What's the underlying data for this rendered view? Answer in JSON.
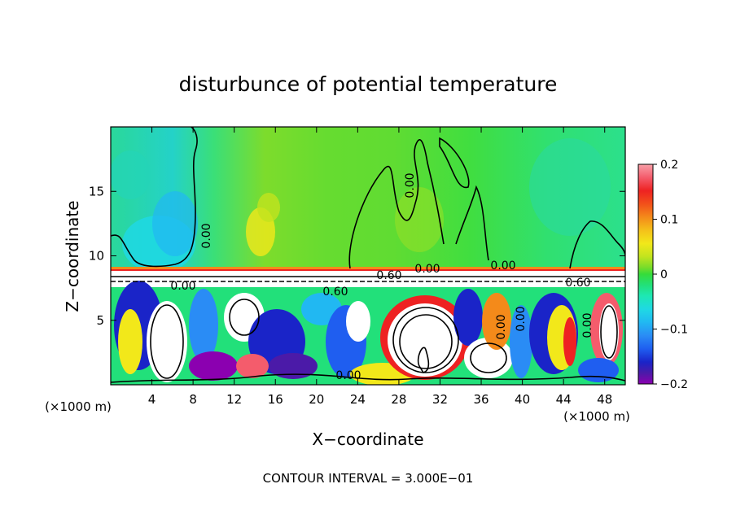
{
  "chart_data": {
    "type": "heatmap",
    "title": "disturbunce of potential temperature",
    "xlabel": "X−coordinate",
    "ylabel": "Z−coordinate",
    "x_unit_left": "(×1000 m)",
    "x_unit_right": "(×1000 m)",
    "xlim": [
      0,
      50
    ],
    "ylim": [
      0,
      20
    ],
    "x_ticks": [
      4,
      8,
      12,
      16,
      20,
      24,
      28,
      32,
      36,
      40,
      44,
      48
    ],
    "y_ticks": [
      5,
      10,
      15
    ],
    "colorbar": {
      "min": -0.2,
      "max": 0.2,
      "tick_values": [
        0.2,
        0.1,
        0,
        -0.1,
        -0.2
      ],
      "tick_labels": [
        "0.2",
        "0.1",
        "0",
        "−0.1",
        "−0.2"
      ],
      "colors": [
        "#8b00b0",
        "#4b1aa8",
        "#1a24c8",
        "#1f5ef0",
        "#2a8cf5",
        "#21b8f2",
        "#1fd8e4",
        "#1ee8b4",
        "#22e07a",
        "#36dc3a",
        "#78dc2a",
        "#c2e41e",
        "#f2e81a",
        "#f4c01a",
        "#f48a1a",
        "#f2501a",
        "#ee2222",
        "#f45c6c",
        "#f8a0a8"
      ]
    },
    "contour_labels": [
      "0.00",
      "0.00",
      "0.00",
      "0.60",
      "0.00",
      "0.60",
      "0.00",
      "0.60",
      "0.00",
      "0.00",
      "0.00",
      "0.00"
    ],
    "footer": "CONTOUR INTERVAL = 3.000E−01"
  }
}
